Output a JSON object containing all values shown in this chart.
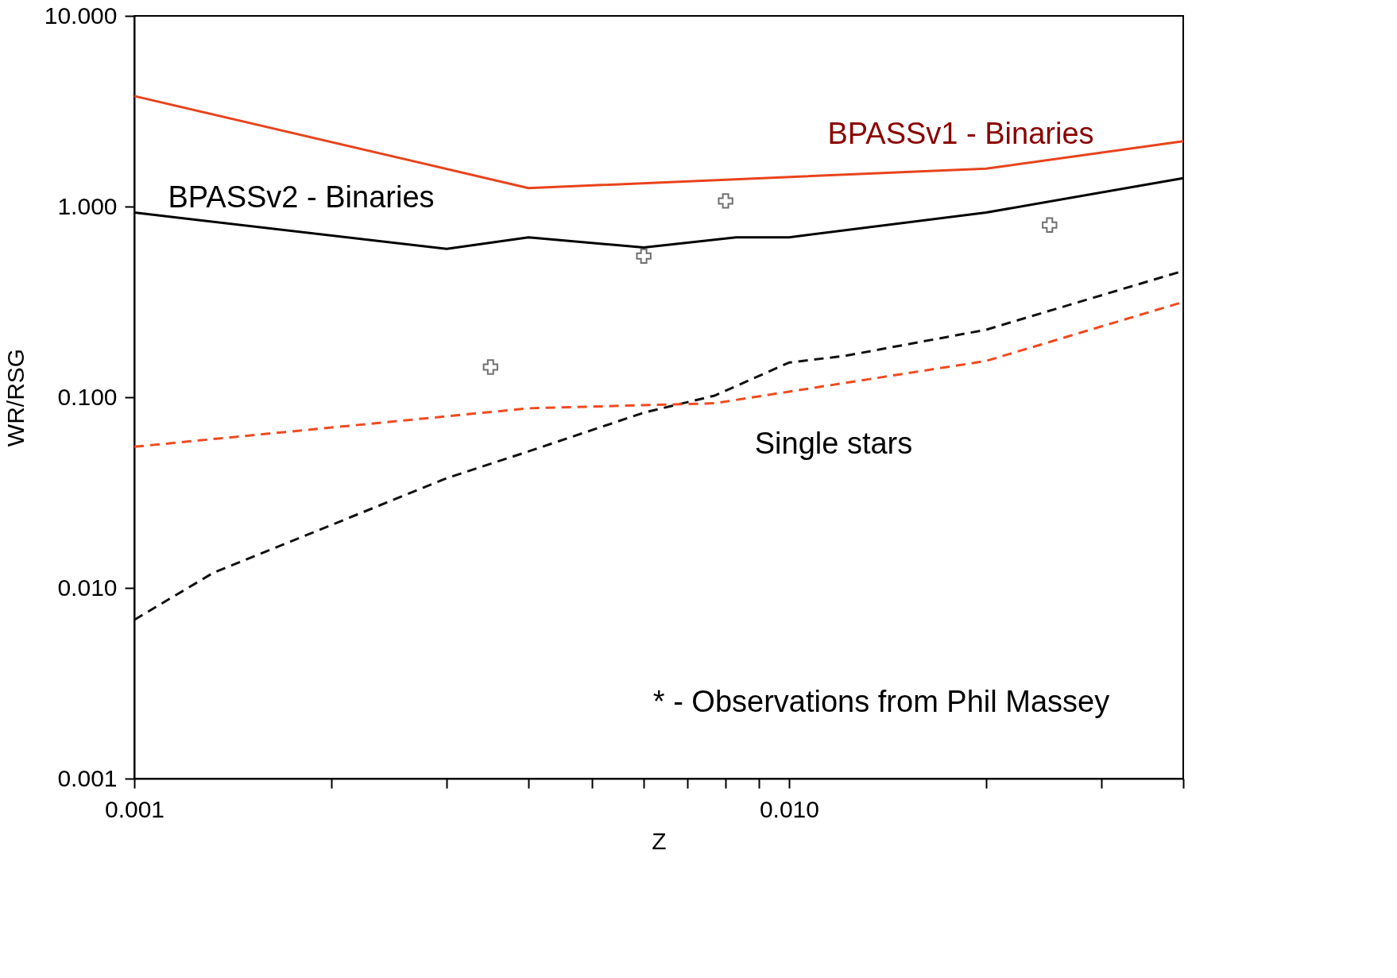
{
  "chart_data": {
    "type": "line",
    "xlabel": "Z",
    "ylabel": "WR/RSG",
    "log": "xy",
    "grid": false,
    "xlim": [
      0.001,
      0.04
    ],
    "ylim": [
      0.001,
      10
    ],
    "xticks": [
      {
        "value": 0.001,
        "label": "0.001"
      },
      {
        "value": 0.002,
        "label": null
      },
      {
        "value": 0.003,
        "label": null
      },
      {
        "value": 0.004,
        "label": null
      },
      {
        "value": 0.005,
        "label": null
      },
      {
        "value": 0.006,
        "label": null
      },
      {
        "value": 0.007,
        "label": null
      },
      {
        "value": 0.008,
        "label": null
      },
      {
        "value": 0.009,
        "label": null
      },
      {
        "value": 0.01,
        "label": "0.010"
      },
      {
        "value": 0.02,
        "label": null
      },
      {
        "value": 0.03,
        "label": null
      },
      {
        "value": 0.04,
        "label": null
      }
    ],
    "yticks": [
      {
        "value": 0.001,
        "label": "0.001"
      },
      {
        "value": 0.01,
        "label": "0.010"
      },
      {
        "value": 0.1,
        "label": "0.100"
      },
      {
        "value": 1,
        "label": "1.000"
      },
      {
        "value": 10,
        "label": "10.000"
      }
    ],
    "series": [
      {
        "type": "line",
        "color": "#e8431c",
        "line_style": "solid",
        "x": [
          0.001,
          0.004,
          0.02,
          0.04
        ],
        "values": [
          3.8,
          1.25,
          1.58,
          2.2
        ]
      },
      {
        "type": "line",
        "color": "#000000",
        "line_style": "solid",
        "x": [
          0.001,
          0.003,
          0.004,
          0.006,
          0.0083,
          0.01,
          0.02,
          0.04
        ],
        "values": [
          0.93,
          0.6,
          0.69,
          0.61,
          0.69,
          0.69,
          0.93,
          1.41
        ]
      },
      {
        "type": "line",
        "color": "#111111",
        "line_style": "dashed",
        "x": [
          0.001,
          0.00132,
          0.003,
          0.004,
          0.006,
          0.0077,
          0.01,
          0.0122,
          0.02,
          0.04
        ],
        "values": [
          0.0068,
          0.012,
          0.0376,
          0.052,
          0.083,
          0.102,
          0.152,
          0.165,
          0.226,
          0.46
        ]
      },
      {
        "type": "line",
        "color": "#f04a1e",
        "line_style": "dashed",
        "x": [
          0.001,
          0.004,
          0.0077,
          0.01,
          0.02,
          0.04
        ],
        "values": [
          0.055,
          0.0875,
          0.093,
          0.107,
          0.155,
          0.316
        ]
      },
      {
        "type": "scatter",
        "color": "#333333",
        "marker": "cross",
        "x": [
          0.0035,
          0.006,
          0.008,
          0.025
        ],
        "values": [
          0.144,
          0.55,
          1.07,
          0.8
        ]
      }
    ],
    "annotations": [
      "BPASSv1 - Binaries",
      "BPASSv2 - Binaries",
      "Single stars",
      "* - Observations from Phil Massey"
    ]
  }
}
